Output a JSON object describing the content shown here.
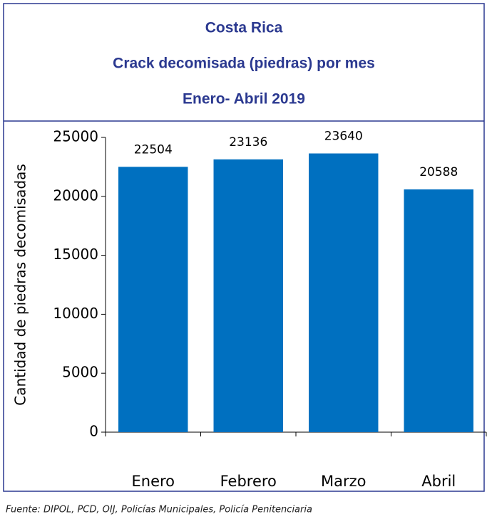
{
  "chart_data": {
    "type": "bar",
    "title": "Costa Rica",
    "subtitle": "Crack decomisada (piedras) por mes",
    "period": "Enero- Abril 2019",
    "y_label": "Cantidad de piedras decomisadas",
    "categories": [
      "Enero",
      "Febrero",
      "Marzo",
      "Abril"
    ],
    "values": [
      22504,
      23136,
      23640,
      20588
    ],
    "color": "#0070c0",
    "ylim": [
      0,
      25000
    ],
    "yticks": [
      0,
      5000,
      10000,
      15000,
      20000,
      25000
    ],
    "source": "Fuente: DIPOL, PCD, OIJ, Policías Municipales, Policía Penitenciaria"
  }
}
